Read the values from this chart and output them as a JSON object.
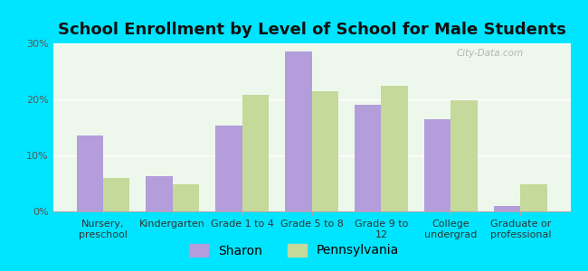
{
  "title": "School Enrollment by Level of School for Male Students",
  "categories": [
    "Nursery,\npreschool",
    "Kindergarten",
    "Grade 1 to 4",
    "Grade 5 to 8",
    "Grade 9 to\n12",
    "College\nundergrad",
    "Graduate or\nprofessional"
  ],
  "sharon": [
    13.5,
    6.3,
    15.3,
    28.5,
    19.0,
    16.5,
    1.0
  ],
  "pennsylvania": [
    6.0,
    4.8,
    20.8,
    21.5,
    22.5,
    19.8,
    4.8
  ],
  "sharon_color": "#b39ddb",
  "pennsylvania_color": "#c5d99b",
  "background_outer": "#00e5ff",
  "background_inner": "#eef7ec",
  "ylim": [
    0,
    30
  ],
  "yticks": [
    0,
    10,
    20,
    30
  ],
  "ytick_labels": [
    "0%",
    "10%",
    "20%",
    "30%"
  ],
  "bar_width": 0.38,
  "title_fontsize": 13,
  "tick_fontsize": 8,
  "legend_fontsize": 10,
  "watermark": "City-Data.com"
}
